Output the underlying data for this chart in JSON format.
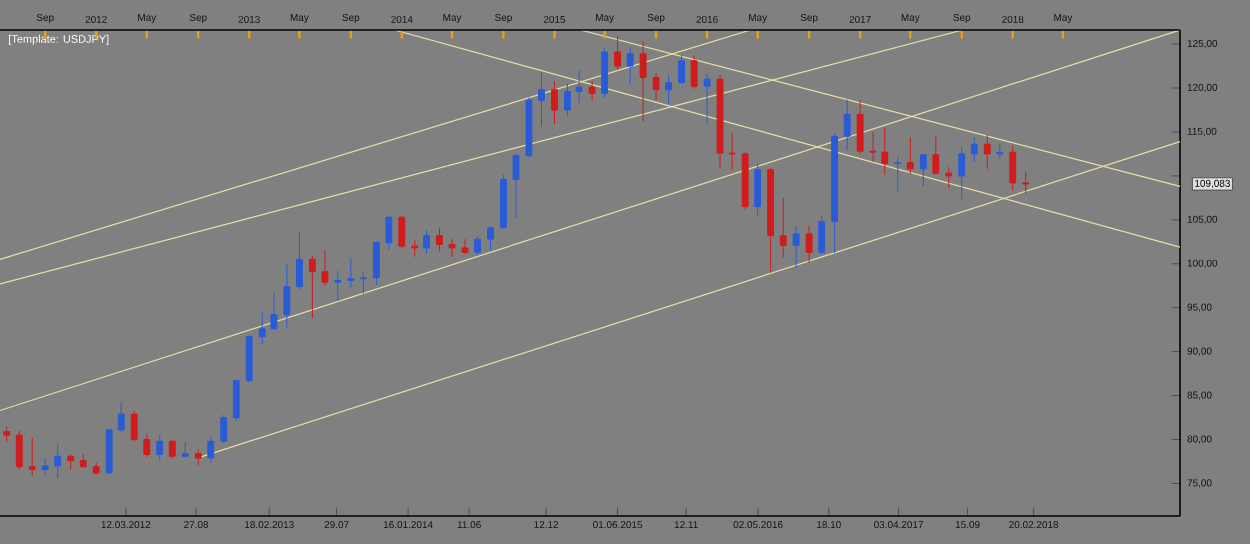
{
  "chart_data": {
    "type": "candlestick",
    "title": "[Template: USDJPY]",
    "x": [
      "2011-06",
      "2011-07",
      "2011-08",
      "2011-09",
      "2011-10",
      "2011-11",
      "2011-12",
      "2012-01",
      "2012-02",
      "2012-03",
      "2012-04",
      "2012-05",
      "2012-06",
      "2012-07",
      "2012-08",
      "2012-09",
      "2012-10",
      "2012-11",
      "2012-12",
      "2013-01",
      "2013-02",
      "2013-03",
      "2013-04",
      "2013-05",
      "2013-06",
      "2013-07",
      "2013-08",
      "2013-09",
      "2013-10",
      "2013-11",
      "2013-12",
      "2014-01",
      "2014-02",
      "2014-03",
      "2014-04",
      "2014-05",
      "2014-06",
      "2014-07",
      "2014-08",
      "2014-09",
      "2014-10",
      "2014-11",
      "2014-12",
      "2015-01",
      "2015-02",
      "2015-03",
      "2015-04",
      "2015-05",
      "2015-06",
      "2015-07",
      "2015-08",
      "2015-09",
      "2015-10",
      "2015-11",
      "2015-12",
      "2016-01",
      "2016-02",
      "2016-03",
      "2016-04",
      "2016-05",
      "2016-06",
      "2016-07",
      "2016-08",
      "2016-09",
      "2016-10",
      "2016-11",
      "2016-12",
      "2017-01",
      "2017-02",
      "2017-03",
      "2017-04",
      "2017-05",
      "2017-06",
      "2017-07",
      "2017-08",
      "2017-09",
      "2017-10",
      "2017-11",
      "2017-12",
      "2018-01",
      "2018-02"
    ],
    "ohlc": [
      [
        80.9,
        81.5,
        79.7,
        80.5
      ],
      [
        80.5,
        81.0,
        76.6,
        76.9
      ],
      [
        76.9,
        80.2,
        75.9,
        76.6
      ],
      [
        76.6,
        77.9,
        75.9,
        77.0
      ],
      [
        77.0,
        79.5,
        75.6,
        78.1
      ],
      [
        78.1,
        78.3,
        76.6,
        77.6
      ],
      [
        77.6,
        78.3,
        76.9,
        76.9
      ],
      [
        76.9,
        77.4,
        76.0,
        76.2
      ],
      [
        76.2,
        81.2,
        76.1,
        81.1
      ],
      [
        81.1,
        84.2,
        80.9,
        82.9
      ],
      [
        82.9,
        83.3,
        79.8,
        80.0
      ],
      [
        80.0,
        80.6,
        78.0,
        78.3
      ],
      [
        78.3,
        80.6,
        77.7,
        79.8
      ],
      [
        79.8,
        80.0,
        77.9,
        78.1
      ],
      [
        78.1,
        79.7,
        78.0,
        78.4
      ],
      [
        78.4,
        78.9,
        77.1,
        77.9
      ],
      [
        77.9,
        80.3,
        77.4,
        79.8
      ],
      [
        79.8,
        82.8,
        79.6,
        82.5
      ],
      [
        82.5,
        86.8,
        82.1,
        86.7
      ],
      [
        86.7,
        91.8,
        86.5,
        91.7
      ],
      [
        91.7,
        94.5,
        90.8,
        92.6
      ],
      [
        92.6,
        96.7,
        92.6,
        94.2
      ],
      [
        94.2,
        99.9,
        92.6,
        97.4
      ],
      [
        97.4,
        103.7,
        97.1,
        100.5
      ],
      [
        100.5,
        100.9,
        93.8,
        99.1
      ],
      [
        99.1,
        101.5,
        97.5,
        97.9
      ],
      [
        97.9,
        99.2,
        95.8,
        98.1
      ],
      [
        98.1,
        100.6,
        97.3,
        98.3
      ],
      [
        98.3,
        99.0,
        96.6,
        98.4
      ],
      [
        98.4,
        102.6,
        97.6,
        102.4
      ],
      [
        102.4,
        105.4,
        101.6,
        105.3
      ],
      [
        105.3,
        105.4,
        101.8,
        102.0
      ],
      [
        102.0,
        102.7,
        100.8,
        101.8
      ],
      [
        101.8,
        103.8,
        101.2,
        103.2
      ],
      [
        103.2,
        104.1,
        101.4,
        102.2
      ],
      [
        102.2,
        102.8,
        100.8,
        101.8
      ],
      [
        101.8,
        102.8,
        101.1,
        101.3
      ],
      [
        101.3,
        103.1,
        101.0,
        102.8
      ],
      [
        102.8,
        104.3,
        101.5,
        104.1
      ],
      [
        104.1,
        110.1,
        104.0,
        109.6
      ],
      [
        109.6,
        112.5,
        105.2,
        112.3
      ],
      [
        112.3,
        118.9,
        112.1,
        118.6
      ],
      [
        118.6,
        121.8,
        115.6,
        119.8
      ],
      [
        119.8,
        120.8,
        115.9,
        117.5
      ],
      [
        117.5,
        120.5,
        116.9,
        119.6
      ],
      [
        119.6,
        122.0,
        118.3,
        120.1
      ],
      [
        120.1,
        120.8,
        118.5,
        119.4
      ],
      [
        119.4,
        124.5,
        118.9,
        124.1
      ],
      [
        124.1,
        125.9,
        122.1,
        122.5
      ],
      [
        122.5,
        124.6,
        120.4,
        123.9
      ],
      [
        123.9,
        125.3,
        116.2,
        121.2
      ],
      [
        121.2,
        121.7,
        118.6,
        119.8
      ],
      [
        119.8,
        121.5,
        118.1,
        120.6
      ],
      [
        120.6,
        123.8,
        120.5,
        123.1
      ],
      [
        123.1,
        123.7,
        119.9,
        120.2
      ],
      [
        120.2,
        121.7,
        115.9,
        121.0
      ],
      [
        121.0,
        121.5,
        110.9,
        112.6
      ],
      [
        112.6,
        114.9,
        110.7,
        112.5
      ],
      [
        112.5,
        112.7,
        106.2,
        106.5
      ],
      [
        106.5,
        111.4,
        105.5,
        110.7
      ],
      [
        110.7,
        110.9,
        99.0,
        103.2
      ],
      [
        103.2,
        107.5,
        100.7,
        102.1
      ],
      [
        102.1,
        104.3,
        99.5,
        103.4
      ],
      [
        103.4,
        104.3,
        100.1,
        101.3
      ],
      [
        101.3,
        105.5,
        101.1,
        104.8
      ],
      [
        104.8,
        114.8,
        101.2,
        114.5
      ],
      [
        114.5,
        118.7,
        112.9,
        117.0
      ],
      [
        117.0,
        118.6,
        112.5,
        112.8
      ],
      [
        112.8,
        115.0,
        111.6,
        112.7
      ],
      [
        112.7,
        115.5,
        110.1,
        111.4
      ],
      [
        111.4,
        112.2,
        108.1,
        111.5
      ],
      [
        111.5,
        114.4,
        110.2,
        110.8
      ],
      [
        110.8,
        112.5,
        108.8,
        112.4
      ],
      [
        112.4,
        114.5,
        110.3,
        110.3
      ],
      [
        110.3,
        111.0,
        108.6,
        110.0
      ],
      [
        110.0,
        113.3,
        107.3,
        112.5
      ],
      [
        112.5,
        114.4,
        111.6,
        113.6
      ],
      [
        113.6,
        114.7,
        110.8,
        112.5
      ],
      [
        112.5,
        113.7,
        111.9,
        112.7
      ],
      [
        112.7,
        113.4,
        108.3,
        109.2
      ],
      [
        109.2,
        110.5,
        108.0,
        109.08
      ]
    ],
    "colors": [
      "#d01c1c",
      "#d01c1c",
      "#d01c1c",
      "#2a5bd7",
      "#2a5bd7",
      "#d01c1c",
      "#d01c1c",
      "#d01c1c",
      "#2a5bd7",
      "#2a5bd7",
      "#d01c1c",
      "#d01c1c",
      "#2a5bd7",
      "#d01c1c",
      "#2a5bd7",
      "#d01c1c",
      "#2a5bd7",
      "#2a5bd7",
      "#2a5bd7",
      "#2a5bd7",
      "#2a5bd7",
      "#2a5bd7",
      "#2a5bd7",
      "#2a5bd7",
      "#d01c1c",
      "#d01c1c",
      "#2a5bd7",
      "#2a5bd7",
      "#2a5bd7",
      "#2a5bd7",
      "#2a5bd7",
      "#d01c1c",
      "#d01c1c",
      "#2a5bd7",
      "#d01c1c",
      "#d01c1c",
      "#d01c1c",
      "#2a5bd7",
      "#2a5bd7",
      "#2a5bd7",
      "#2a5bd7",
      "#2a5bd7",
      "#2a5bd7",
      "#d01c1c",
      "#2a5bd7",
      "#2a5bd7",
      "#d01c1c",
      "#2a5bd7",
      "#d01c1c",
      "#2a5bd7",
      "#d01c1c",
      "#d01c1c",
      "#2a5bd7",
      "#2a5bd7",
      "#d01c1c",
      "#2a5bd7",
      "#d01c1c",
      "#d01c1c",
      "#d01c1c",
      "#2a5bd7",
      "#d01c1c",
      "#d01c1c",
      "#2a5bd7",
      "#d01c1c",
      "#2a5bd7",
      "#2a5bd7",
      "#2a5bd7",
      "#d01c1c",
      "#d01c1c",
      "#d01c1c",
      "#2a5bd7",
      "#d01c1c",
      "#2a5bd7",
      "#d01c1c",
      "#d01c1c",
      "#2a5bd7",
      "#2a5bd7",
      "#d01c1c",
      "#2a5bd7",
      "#d01c1c",
      "#d01c1c"
    ],
    "series": [
      {
        "type": "line",
        "color": "#e8e0a8",
        "x": [
          "2011-05-16",
          "2016-04-14"
        ],
        "values": [
          100.5,
          126.6
        ]
      },
      {
        "type": "line",
        "color": "#e8e0a8",
        "x": [
          "2011-05-16",
          "2017-09-03"
        ],
        "values": [
          97.7,
          126.6
        ]
      },
      {
        "type": "line",
        "color": "#e8e0a8",
        "x": [
          "2011-05-16",
          "2019-02-05"
        ],
        "values": [
          83.3,
          126.6
        ]
      },
      {
        "type": "line",
        "color": "#e8e0a8",
        "x": [
          "2012-09-06",
          "2019-02-05"
        ],
        "values": [
          78.0,
          113.9
        ]
      },
      {
        "type": "line",
        "color": "#e8e0a8",
        "x": [
          "2015-03-04",
          "2019-02-05"
        ],
        "values": [
          126.6,
          108.8
        ]
      },
      {
        "type": "line",
        "color": "#e8e0a8",
        "x": [
          "2013-12-14",
          "2019-02-05"
        ],
        "values": [
          126.6,
          101.9
        ]
      }
    ],
    "xlim": [
      "2011-05-16",
      "2019-02-05"
    ],
    "xticks": [
      {
        "value": "2012-03-12",
        "label": "12.03.2012"
      },
      {
        "value": "2012-08-27",
        "label": "27.08"
      },
      {
        "value": "2013-02-18",
        "label": "18.02.2013"
      },
      {
        "value": "2013-07-29",
        "label": "29.07"
      },
      {
        "value": "2014-01-16",
        "label": "16.01.2014"
      },
      {
        "value": "2014-06-11",
        "label": "11.06"
      },
      {
        "value": "2014-12-12",
        "label": "12.12"
      },
      {
        "value": "2015-06-01",
        "label": "01.06.2015"
      },
      {
        "value": "2015-11-12",
        "label": "12.11"
      },
      {
        "value": "2016-05-02",
        "label": "02.05.2016"
      },
      {
        "value": "2016-10-18",
        "label": "18.10"
      },
      {
        "value": "2017-04-03",
        "label": "03.04.2017"
      },
      {
        "value": "2017-09-15",
        "label": "15.09"
      },
      {
        "value": "2018-02-20",
        "label": "20.02.2018"
      }
    ],
    "x2lim": [
      "2011-05-16",
      "2019-02-05"
    ],
    "x2ticks": [
      {
        "value": "2011-09",
        "label": "Sep"
      },
      {
        "value": "2012-01",
        "label": "2012"
      },
      {
        "value": "2012-05",
        "label": "May"
      },
      {
        "value": "2012-09",
        "label": "Sep"
      },
      {
        "value": "2013-01",
        "label": "2013"
      },
      {
        "value": "2013-05",
        "label": "May"
      },
      {
        "value": "2013-09",
        "label": "Sep"
      },
      {
        "value": "2014-01",
        "label": "2014"
      },
      {
        "value": "2014-05",
        "label": "May"
      },
      {
        "value": "2014-09",
        "label": "Sep"
      },
      {
        "value": "2015-01",
        "label": "2015"
      },
      {
        "value": "2015-05",
        "label": "May"
      },
      {
        "value": "2015-09",
        "label": "Sep"
      },
      {
        "value": "2016-01",
        "label": "2016"
      },
      {
        "value": "2016-05",
        "label": "May"
      },
      {
        "value": "2016-09",
        "label": "Sep"
      },
      {
        "value": "2017-01",
        "label": "2017"
      },
      {
        "value": "2017-05",
        "label": "May"
      },
      {
        "value": "2017-09",
        "label": "Sep"
      },
      {
        "value": "2018-01",
        "label": "2018"
      },
      {
        "value": "2018-05",
        "label": "May"
      }
    ],
    "annotations": [
      {
        "text": "109,083",
        "x": "2019-02-05",
        "y": 109.083
      }
    ],
    "ylim": [
      71.3,
      126.6
    ],
    "yticks": [
      {
        "value": 75,
        "label": "75,00"
      },
      {
        "value": 80,
        "label": "80,00"
      },
      {
        "value": 85,
        "label": "85,00"
      },
      {
        "value": 90,
        "label": "90,00"
      },
      {
        "value": 95,
        "label": "95,00"
      },
      {
        "value": 100,
        "label": "100,00"
      },
      {
        "value": 105,
        "label": "105,00"
      },
      {
        "value": 110,
        "label": null
      },
      {
        "value": 115,
        "label": "115,00"
      },
      {
        "value": 120,
        "label": "120,00"
      },
      {
        "value": 125,
        "label": "125,00"
      }
    ]
  }
}
